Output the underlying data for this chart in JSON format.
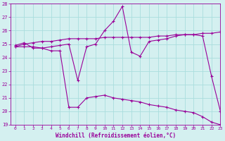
{
  "line1_x": [
    0,
    1,
    2,
    3,
    4,
    5,
    6,
    7,
    8,
    9,
    10,
    11,
    12,
    13,
    14,
    15,
    16,
    17,
    18,
    19,
    20,
    21,
    22,
    23
  ],
  "line1_y": [
    24.9,
    25.1,
    24.7,
    24.7,
    24.8,
    24.9,
    25.0,
    22.3,
    24.8,
    25.0,
    26.0,
    26.7,
    27.8,
    24.4,
    24.1,
    25.2,
    25.3,
    25.4,
    25.6,
    25.7,
    25.7,
    25.6,
    22.6,
    20.0
  ],
  "line2_x": [
    0,
    1,
    2,
    3,
    4,
    5,
    6,
    7,
    8,
    9,
    10,
    11,
    12,
    13,
    14,
    15,
    16,
    17,
    18,
    19,
    20,
    21,
    22,
    23
  ],
  "line2_y": [
    24.8,
    25.0,
    25.1,
    25.2,
    25.2,
    25.3,
    25.4,
    25.4,
    25.4,
    25.4,
    25.5,
    25.5,
    25.5,
    25.5,
    25.5,
    25.5,
    25.6,
    25.6,
    25.7,
    25.7,
    25.7,
    25.8,
    25.8,
    25.9
  ],
  "line3_x": [
    0,
    1,
    2,
    3,
    4,
    5,
    6,
    7,
    8,
    9,
    10,
    11,
    12,
    13,
    14,
    15,
    16,
    17,
    18,
    19,
    20,
    21,
    22,
    23
  ],
  "line3_y": [
    24.8,
    24.8,
    24.8,
    24.7,
    24.5,
    24.5,
    20.3,
    20.3,
    21.0,
    21.1,
    21.2,
    21.0,
    20.9,
    20.8,
    20.7,
    20.5,
    20.4,
    20.3,
    20.1,
    20.0,
    19.9,
    19.6,
    19.2,
    19.0
  ],
  "line_color": "#990099",
  "bg_color": "#d4f0f0",
  "grid_color": "#aadddd",
  "xlabel": "Windchill (Refroidissement éolien,°C)",
  "ylim": [
    19,
    28
  ],
  "xlim": [
    -0.5,
    23
  ],
  "yticks": [
    19,
    20,
    21,
    22,
    23,
    24,
    25,
    26,
    27,
    28
  ],
  "xticks": [
    0,
    1,
    2,
    3,
    4,
    5,
    6,
    7,
    8,
    9,
    10,
    11,
    12,
    13,
    14,
    15,
    16,
    17,
    18,
    19,
    20,
    21,
    22,
    23
  ]
}
